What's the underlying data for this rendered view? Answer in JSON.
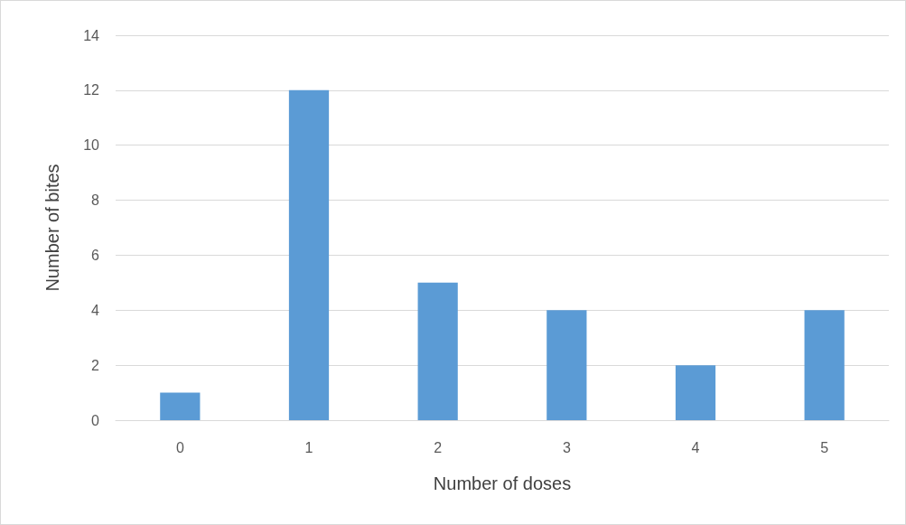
{
  "chart_data": {
    "type": "bar",
    "xlabel": "Number of doses",
    "ylabel": "Number of bites",
    "categories": [
      "0",
      "1",
      "2",
      "3",
      "4",
      "5"
    ],
    "values": [
      1,
      12,
      5,
      4,
      2,
      4
    ],
    "color": "#5b9bd5",
    "ylim": [
      0,
      14
    ],
    "yticks": [
      0,
      2,
      4,
      6,
      8,
      10,
      12,
      14
    ],
    "grid": "y"
  }
}
